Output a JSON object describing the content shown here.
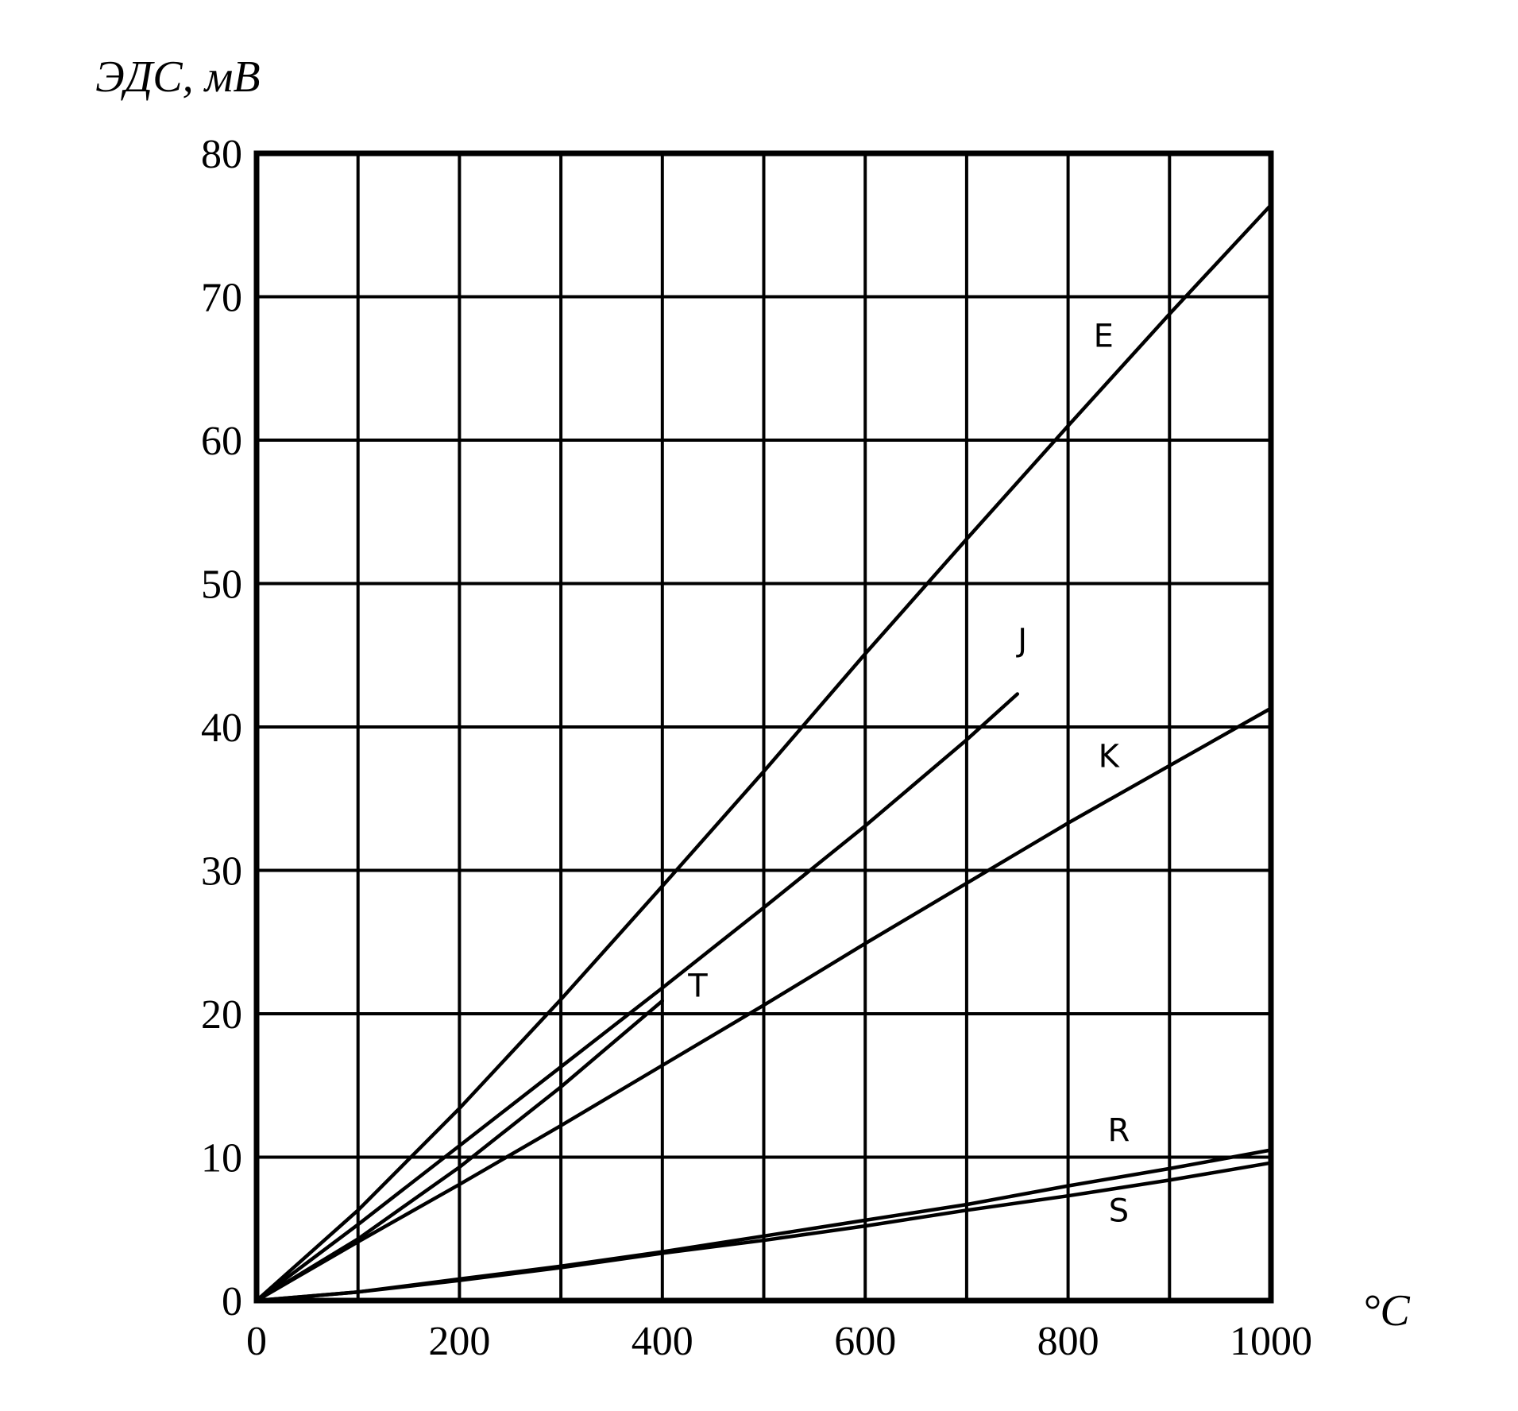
{
  "chart_data": {
    "type": "line",
    "title": "",
    "xlabel": "°C",
    "ylabel": "ЭДС, мВ",
    "xlim": [
      0,
      1000
    ],
    "ylim": [
      0,
      80
    ],
    "x_ticks": [
      "0",
      "200",
      "400",
      "600",
      "800",
      "1000"
    ],
    "y_ticks": [
      "0",
      "10",
      "20",
      "30",
      "40",
      "50",
      "60",
      "70",
      "80"
    ],
    "grid": true,
    "legend": "none",
    "series": [
      {
        "name": "E",
        "x": [
          0,
          100,
          200,
          300,
          400,
          500,
          600,
          700,
          800,
          900,
          1000
        ],
        "y": [
          0,
          6.3,
          13.4,
          21.0,
          28.9,
          36.9,
          45.1,
          53.1,
          61.0,
          68.8,
          76.4
        ]
      },
      {
        "name": "J",
        "x": [
          0,
          100,
          200,
          300,
          400,
          500,
          600,
          700,
          750
        ],
        "y": [
          0,
          5.3,
          10.8,
          16.3,
          21.8,
          27.4,
          33.1,
          39.1,
          42.3
        ]
      },
      {
        "name": "K",
        "x": [
          0,
          100,
          200,
          300,
          400,
          500,
          600,
          700,
          800,
          900,
          1000
        ],
        "y": [
          0,
          4.1,
          8.1,
          12.2,
          16.4,
          20.6,
          24.9,
          29.1,
          33.3,
          37.3,
          41.3
        ]
      },
      {
        "name": "T",
        "x": [
          0,
          100,
          200,
          300,
          400
        ],
        "y": [
          0,
          4.3,
          9.3,
          14.9,
          20.9
        ]
      },
      {
        "name": "R",
        "x": [
          0,
          100,
          200,
          300,
          400,
          500,
          600,
          700,
          800,
          900,
          1000
        ],
        "y": [
          0,
          0.6,
          1.5,
          2.4,
          3.4,
          4.5,
          5.6,
          6.7,
          8.0,
          9.2,
          10.5
        ]
      },
      {
        "name": "S",
        "x": [
          0,
          100,
          200,
          300,
          400,
          500,
          600,
          700,
          800,
          900,
          1000
        ],
        "y": [
          0,
          0.6,
          1.4,
          2.3,
          3.3,
          4.2,
          5.2,
          6.3,
          7.3,
          8.4,
          9.6
        ]
      }
    ]
  }
}
